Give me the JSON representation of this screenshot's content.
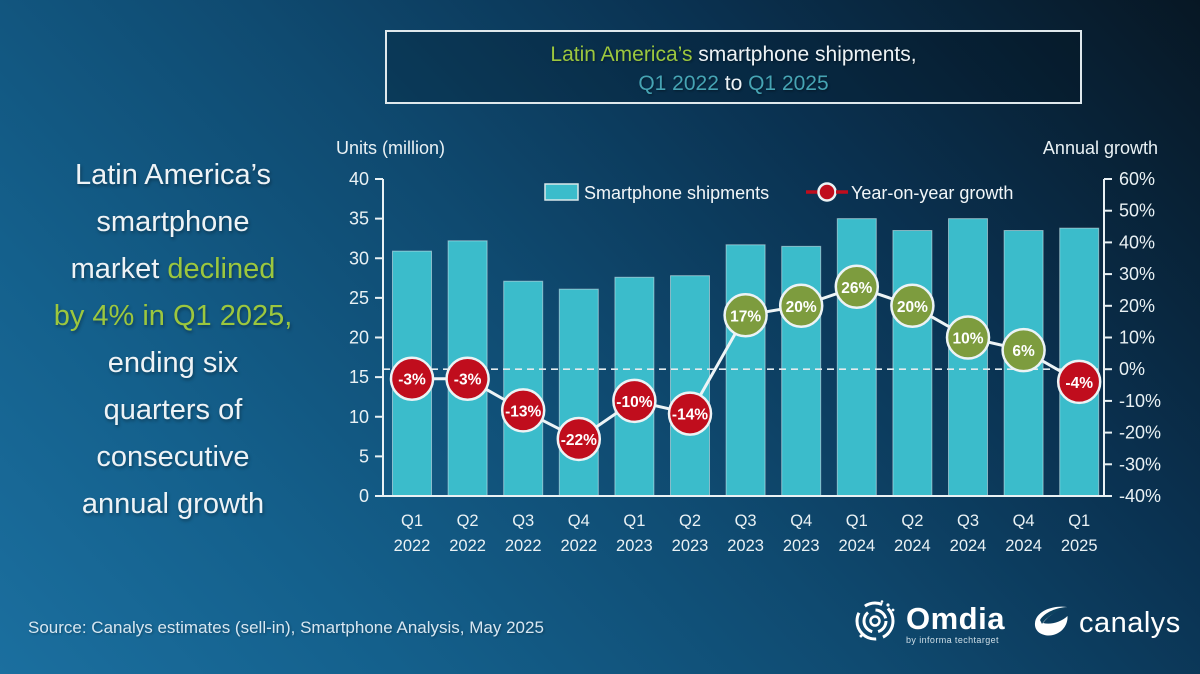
{
  "title_box": {
    "part1": "Latin America’s",
    "part2": " smartphone shipments,",
    "part3": "Q1 2022",
    "part4": " to ",
    "part5": "Q1 2025"
  },
  "headline": {
    "line1": "Latin America’s",
    "line2": "smartphone",
    "line3a": "market ",
    "line3b": "declined",
    "line4": "by 4% in Q1 2025,",
    "line5": "ending six",
    "line6": "quarters of",
    "line7": "consecutive",
    "line8": "annual growth"
  },
  "source": "Source: Canalys estimates (sell-in), Smartphone Analysis, May 2025",
  "logos": {
    "omdia": "Omdia",
    "omdia_sub": "by informa techtarget",
    "canalys": "canalys"
  },
  "chart_data": {
    "type": "bar",
    "title": "Latin America's smartphone shipments, Q1 2022 to Q1 2025",
    "categories": [
      "Q1 2022",
      "Q2 2022",
      "Q3 2022",
      "Q4 2022",
      "Q1 2023",
      "Q2 2023",
      "Q3 2023",
      "Q4 2023",
      "Q1 2024",
      "Q2 2024",
      "Q3 2024",
      "Q4 2024",
      "Q1 2025"
    ],
    "series": [
      {
        "name": "Smartphone shipments",
        "type": "bar",
        "unit": "million units",
        "values": [
          30.9,
          32.2,
          27.1,
          26.1,
          27.6,
          27.8,
          31.7,
          31.5,
          35.0,
          33.5,
          35.0,
          33.5,
          33.8
        ]
      },
      {
        "name": "Year-on-year growth",
        "type": "line",
        "unit": "%",
        "values": [
          -3,
          -3,
          -13,
          -22,
          -10,
          -14,
          17,
          20,
          26,
          20,
          10,
          6,
          -4
        ]
      }
    ],
    "ylabel_left": "Units (million)",
    "ylabel_right": "Annual growth",
    "ylim_left": [
      0,
      40
    ],
    "ytick_left": 5,
    "ylim_right": [
      -40,
      60
    ],
    "ytick_right": 10,
    "legend_position": "top-center-inside",
    "zero_line": "dashed",
    "grid": false,
    "colors": {
      "bar": "#3bbccb",
      "bar_stroke": "#bfe9ee",
      "marker_positive": "#7d9c3e",
      "marker_negative": "#c00d1d",
      "line": "#edf4f6",
      "axis": "#e9f1f4",
      "accent_green": "#9cc73e",
      "accent_teal": "#46a4b4"
    }
  }
}
